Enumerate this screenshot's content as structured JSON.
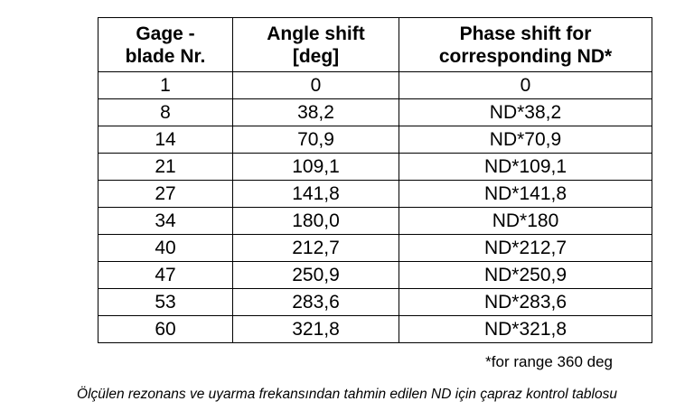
{
  "table": {
    "headers": [
      {
        "line1": "Gage -",
        "line2": "blade Nr."
      },
      {
        "line1": "Angle shift",
        "line2": "[deg]"
      },
      {
        "line1": "Phase shift for",
        "line2": "corresponding ND*"
      }
    ],
    "rows": [
      [
        "1",
        "0",
        "0"
      ],
      [
        "8",
        "38,2",
        "ND*38,2"
      ],
      [
        "14",
        "70,9",
        "ND*70,9"
      ],
      [
        "21",
        "109,1",
        "ND*109,1"
      ],
      [
        "27",
        "141,8",
        "ND*141,8"
      ],
      [
        "34",
        "180,0",
        "ND*180"
      ],
      [
        "40",
        "212,7",
        "ND*212,7"
      ],
      [
        "47",
        "250,9",
        "ND*250,9"
      ],
      [
        "53",
        "283,6",
        "ND*283,6"
      ],
      [
        "60",
        "321,8",
        "ND*321,8"
      ]
    ]
  },
  "footnote": "*for range 360 deg",
  "caption": "Ölçülen rezonans ve uyarma frekansından tahmin edilen ND için çapraz kontrol tablosu"
}
